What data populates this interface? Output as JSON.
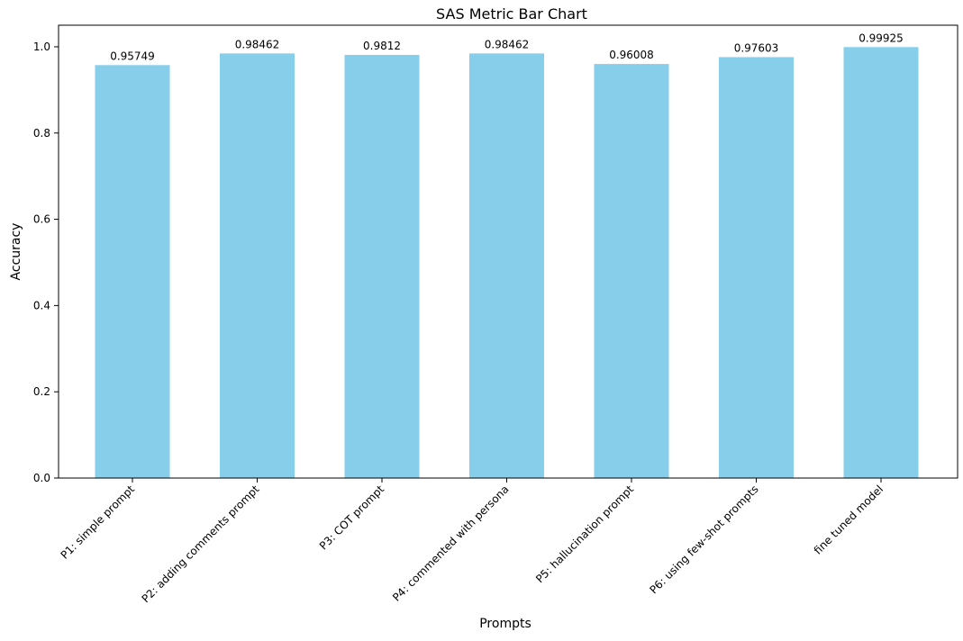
{
  "chart_data": {
    "type": "bar",
    "title": "SAS Metric Bar Chart",
    "xlabel": "Prompts",
    "ylabel": "Accuracy",
    "categories": [
      "P1: simple prompt",
      "P2: adding comments prompt",
      "P3: COT prompt",
      "P4: commented with persona",
      "P5: hallucination prompt",
      "P6: using few-shot prompts",
      "fine tuned model"
    ],
    "values": [
      0.95749,
      0.98462,
      0.9812,
      0.98462,
      0.96008,
      0.97603,
      0.99925
    ],
    "value_labels": [
      "0.95749",
      "0.98462",
      "0.9812",
      "0.98462",
      "0.96008",
      "0.97603",
      "0.99925"
    ],
    "ylim": [
      0,
      1.05
    ],
    "yticks": [
      0.0,
      0.2,
      0.4,
      0.6,
      0.8,
      1.0
    ],
    "ytick_labels": [
      "0.0",
      "0.2",
      "0.4",
      "0.6",
      "0.8",
      "1.0"
    ],
    "bar_color": "#87CEEB",
    "grid": false,
    "legend": "none"
  }
}
